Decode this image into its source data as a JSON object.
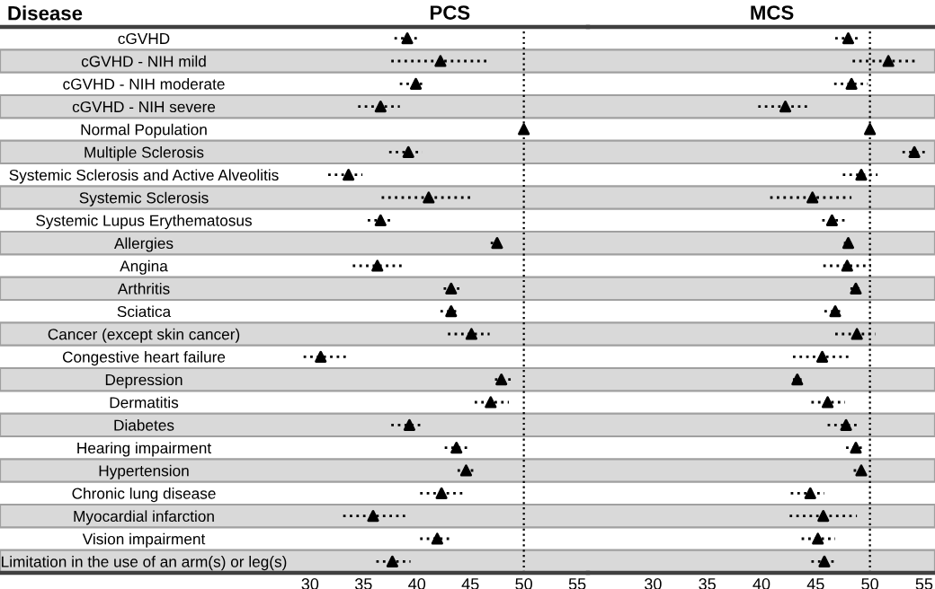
{
  "chart_data": [
    {
      "type": "scatter",
      "title": "PCS",
      "ylabel": "Disease",
      "orientation": "horizontal",
      "categories": [
        "cGVHD",
        "cGVHD - NIH mild",
        "cGVHD - NIH moderate",
        "cGVHD - NIH severe",
        "Normal Population",
        "Multiple Sclerosis",
        "Systemic Sclerosis and Active Alveolitis",
        "Systemic Sclerosis",
        "Systemic Lupus Erythematosus",
        "Allergies",
        "Angina",
        "Arthritis",
        "Sciatica",
        "Cancer (except skin cancer)",
        "Congestive heart failure",
        "Depression",
        "Dermatitis",
        "Diabetes",
        "Hearing impairment",
        "Hypertension",
        "Chronic lung disease",
        "Myocardial infarction",
        "Vision impairment",
        "Limitation in the use of an arm(s) or leg(s)"
      ],
      "color": "#000000",
      "values": [
        39.1,
        42.2,
        39.9,
        36.6,
        50,
        39.2,
        33.6,
        41.1,
        36.6,
        47.5,
        36.3,
        43.2,
        43.2,
        45.1,
        31.0,
        47.9,
        46.9,
        39.3,
        43.7,
        44.6,
        42.3,
        35.9,
        41.9,
        37.7
      ],
      "errors": [
        [
          37.9,
          40.3
        ],
        [
          37.6,
          46.6
        ],
        [
          38.4,
          40.8
        ],
        [
          34.5,
          38.4
        ],
        null,
        [
          37.4,
          40.5
        ],
        [
          31.7,
          34.9
        ],
        [
          36.7,
          45.0
        ],
        [
          35.4,
          37.8
        ],
        [
          46.9,
          47.9
        ],
        [
          34.0,
          38.7
        ],
        [
          42.5,
          44.2
        ],
        [
          42.2,
          43.9
        ],
        [
          42.9,
          46.8
        ],
        [
          29.4,
          33.4
        ],
        [
          47.3,
          48.9
        ],
        [
          45.4,
          48.6
        ],
        [
          37.6,
          40.6
        ],
        [
          42.6,
          45.0
        ],
        [
          43.8,
          45.4
        ],
        [
          40.3,
          44.3
        ],
        [
          33.1,
          38.9
        ],
        [
          40.3,
          43.3
        ],
        [
          36.2,
          39.4
        ]
      ],
      "marker": "triangle",
      "xlim": [
        1,
        56
      ],
      "xticks": [
        30,
        35,
        40,
        45,
        50,
        55
      ],
      "ref_lines": [
        {
          "axis": "x",
          "value": 50,
          "line_style": "dotted",
          "color": "#000000"
        }
      ],
      "grid": false,
      "legend": false
    },
    {
      "type": "scatter",
      "title": "MCS",
      "orientation": "horizontal",
      "tick_labels": "x",
      "categories": [
        null,
        null,
        null,
        null,
        null,
        null,
        null,
        null,
        null,
        null,
        null,
        null,
        null,
        null,
        null,
        null,
        null,
        null,
        null,
        null,
        null,
        null,
        null,
        null
      ],
      "color": "#000000",
      "values": [
        48.0,
        51.7,
        48.3,
        42.2,
        50,
        54.1,
        49.2,
        44.7,
        46.5,
        48.0,
        47.9,
        48.7,
        46.8,
        48.8,
        45.6,
        43.3,
        46.1,
        47.8,
        48.7,
        49.2,
        44.5,
        45.7,
        45.2,
        45.8
      ],
      "errors": [
        [
          46.8,
          49.1
        ],
        [
          48.4,
          54.5
        ],
        [
          46.7,
          49.8
        ],
        [
          39.7,
          44.4
        ],
        null,
        [
          53.0,
          55.2
        ],
        [
          47.5,
          50.7
        ],
        [
          40.8,
          48.3
        ],
        [
          45.6,
          47.7
        ],
        [
          47.6,
          48.3
        ],
        [
          45.7,
          50.1
        ],
        [
          48.2,
          49.2
        ],
        [
          45.8,
          47.6
        ],
        [
          46.8,
          50.5
        ],
        [
          42.9,
          48.3
        ],
        [
          42.9,
          43.7
        ],
        [
          44.6,
          47.7
        ],
        [
          46.1,
          49.1
        ],
        [
          47.8,
          49.4
        ],
        [
          48.5,
          49.6
        ],
        [
          42.7,
          45.8
        ],
        [
          42.6,
          48.8
        ],
        [
          43.7,
          46.8
        ],
        [
          44.6,
          46.9
        ]
      ],
      "marker": "triangle",
      "xlim": [
        24,
        56
      ],
      "xticks": [
        30,
        35,
        40,
        45,
        50,
        55
      ],
      "ref_lines": [
        {
          "axis": "x",
          "value": 50,
          "line_style": "dotted",
          "color": "#000000"
        }
      ],
      "grid": false,
      "legend": false
    }
  ]
}
